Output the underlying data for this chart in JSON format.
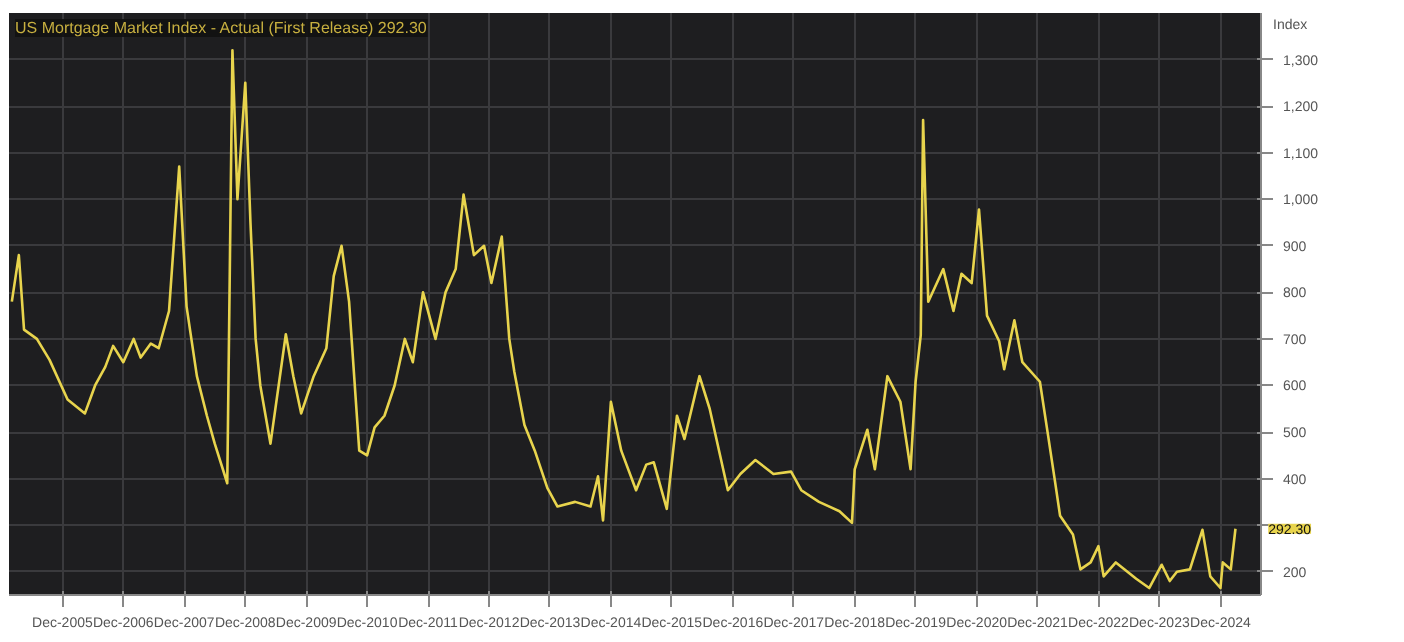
{
  "chart_data": {
    "type": "line",
    "title": "US Mortgage Market Index - Actual (First Release) 292.30",
    "ylabel": "Index",
    "x": [
      "2005-02-01",
      "2005-03-15",
      "2005-04-15",
      "2005-07-01",
      "2005-09-15",
      "2006-01-01",
      "2006-04-15",
      "2006-06-15",
      "2006-08-15",
      "2006-10-01",
      "2006-12-01",
      "2007-02-01",
      "2007-03-15",
      "2007-05-15",
      "2007-07-01",
      "2007-09-01",
      "2007-11-01",
      "2007-12-15",
      "2008-02-15",
      "2008-04-15",
      "2008-06-01",
      "2008-08-15",
      "2008-09-15",
      "2008-10-15",
      "2008-12-01",
      "2009-01-01",
      "2009-02-01",
      "2009-03-01",
      "2009-05-01",
      "2009-08-01",
      "2009-09-15",
      "2009-11-01",
      "2010-01-15",
      "2010-04-01",
      "2010-05-15",
      "2010-07-01",
      "2010-08-15",
      "2010-10-15",
      "2010-12-01",
      "2011-01-15",
      "2011-03-15",
      "2011-05-15",
      "2011-07-15",
      "2011-09-01",
      "2011-11-01",
      "2012-01-15",
      "2012-03-15",
      "2012-05-15",
      "2012-07-01",
      "2012-09-01",
      "2012-11-01",
      "2012-12-15",
      "2013-02-15",
      "2013-04-01",
      "2013-05-01",
      "2013-07-01",
      "2013-09-01",
      "2013-11-15",
      "2014-01-15",
      "2014-05-01",
      "2014-08-01",
      "2014-09-15",
      "2014-10-15",
      "2014-12-01",
      "2015-02-01",
      "2015-05-01",
      "2015-07-01",
      "2015-08-15",
      "2015-11-01",
      "2016-01-01",
      "2016-02-15",
      "2016-05-15",
      "2016-07-15",
      "2016-11-01",
      "2017-01-15",
      "2017-04-15",
      "2017-08-01",
      "2017-11-15",
      "2018-01-15",
      "2018-05-01",
      "2018-09-01",
      "2018-11-15",
      "2018-12-01",
      "2019-02-15",
      "2019-04-01",
      "2019-06-15",
      "2019-09-01",
      "2019-11-01",
      "2019-12-01",
      "2020-01-01",
      "2020-01-15",
      "2020-02-15",
      "2020-05-15",
      "2020-07-15",
      "2020-09-01",
      "2020-11-01",
      "2020-12-15",
      "2021-02-01",
      "2021-04-15",
      "2021-05-15",
      "2021-07-15",
      "2021-09-01",
      "2021-12-15",
      "2022-02-01",
      "2022-03-15",
      "2022-04-15",
      "2022-07-01",
      "2022-08-15",
      "2022-10-15",
      "2022-12-01",
      "2023-01-01",
      "2023-03-15",
      "2023-07-15",
      "2023-10-01",
      "2023-12-15",
      "2024-02-01",
      "2024-03-15",
      "2024-06-01",
      "2024-08-15",
      "2024-10-01",
      "2024-12-01",
      "2024-12-15",
      "2025-02-01",
      "2025-03-01"
    ],
    "series": [
      {
        "color": "#e8d44d",
        "values": [
          780,
          880,
          720,
          700,
          655,
          570,
          540,
          600,
          640,
          685,
          650,
          700,
          660,
          690,
          680,
          760,
          1070,
          770,
          620,
          535,
          475,
          390,
          1320,
          1000,
          1250,
          950,
          700,
          600,
          475,
          710,
          620,
          540,
          620,
          680,
          835,
          900,
          780,
          460,
          450,
          510,
          535,
          600,
          700,
          650,
          800,
          700,
          800,
          850,
          1010,
          880,
          900,
          820,
          920,
          700,
          630,
          515,
          460,
          380,
          340,
          350,
          340,
          405,
          310,
          565,
          460,
          375,
          430,
          435,
          335,
          535,
          485,
          620,
          550,
          375,
          410,
          440,
          410,
          415,
          375,
          350,
          330,
          305,
          420,
          505,
          420,
          620,
          565,
          420,
          608,
          708,
          1170,
          780,
          850,
          760,
          840,
          820,
          978,
          750,
          695,
          635,
          740,
          650,
          608,
          495,
          395,
          320,
          280,
          205,
          220,
          255,
          190,
          220,
          185,
          165,
          215,
          180,
          200,
          205,
          290,
          190,
          165,
          220,
          205,
          292.3
        ]
      }
    ],
    "xlim": [
      "2005-01-15",
      "2025-08-01"
    ],
    "xticks": [
      {
        "value": "2005-12-01",
        "label": "Dec-2005"
      },
      {
        "value": "2006-12-01",
        "label": "Dec-2006"
      },
      {
        "value": "2007-12-01",
        "label": "Dec-2007"
      },
      {
        "value": "2008-12-01",
        "label": "Dec-2008"
      },
      {
        "value": "2009-12-01",
        "label": "Dec-2009"
      },
      {
        "value": "2010-12-01",
        "label": "Dec-2010"
      },
      {
        "value": "2011-12-01",
        "label": "Dec-2011"
      },
      {
        "value": "2012-12-01",
        "label": "Dec-2012"
      },
      {
        "value": "2013-12-01",
        "label": "Dec-2013"
      },
      {
        "value": "2014-12-01",
        "label": "Dec-2014"
      },
      {
        "value": "2015-12-01",
        "label": "Dec-2015"
      },
      {
        "value": "2016-12-01",
        "label": "Dec-2016"
      },
      {
        "value": "2017-12-01",
        "label": "Dec-2017"
      },
      {
        "value": "2018-12-01",
        "label": "Dec-2018"
      },
      {
        "value": "2019-12-01",
        "label": "Dec-2019"
      },
      {
        "value": "2020-12-01",
        "label": "Dec-2020"
      },
      {
        "value": "2021-12-01",
        "label": "Dec-2021"
      },
      {
        "value": "2022-12-01",
        "label": "Dec-2022"
      },
      {
        "value": "2023-12-01",
        "label": "Dec-2023"
      },
      {
        "value": "2024-12-01",
        "label": "Dec-2024"
      }
    ],
    "ylim": [
      150,
      1400
    ],
    "yticks": [
      200,
      {
        "value": 300,
        "label": null
      },
      400,
      500,
      600,
      700,
      800,
      900,
      {
        "value": 1000,
        "label": "1,000"
      },
      {
        "value": 1100,
        "label": "1,100"
      },
      {
        "value": 1200,
        "label": "1,200"
      },
      {
        "value": 1300,
        "label": "1,300"
      }
    ],
    "annotations": [
      {
        "text": "292.30",
        "x": "2025-03-01",
        "y": 292.3
      }
    ],
    "grid": true,
    "marker": "none",
    "line_style": "solid"
  }
}
